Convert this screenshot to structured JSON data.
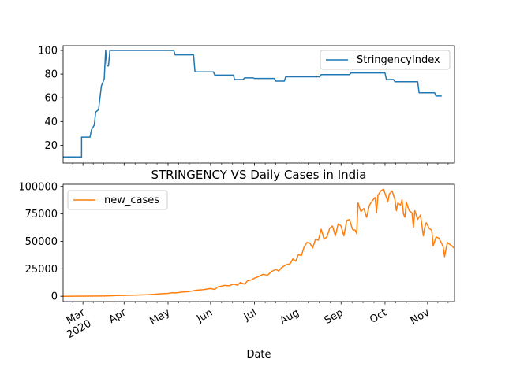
{
  "chart_data": [
    {
      "type": "line",
      "title": "",
      "xlabel": "",
      "ylabel": "",
      "ylim": [
        5,
        104
      ],
      "yticks": [
        20,
        40,
        60,
        80,
        100
      ],
      "legend": {
        "position": "top-right",
        "entries": [
          "StringencyIndex"
        ]
      },
      "series": [
        {
          "name": "StringencyIndex",
          "color": "#1f77b4",
          "points": [
            [
              "2020-02-01",
              10.2
            ],
            [
              "2020-02-14",
              10.2
            ],
            [
              "2020-02-14",
              26.85
            ],
            [
              "2020-02-20",
              26.85
            ],
            [
              "2020-02-21",
              33
            ],
            [
              "2020-02-23",
              37
            ],
            [
              "2020-02-24",
              48
            ],
            [
              "2020-02-26",
              50
            ],
            [
              "2020-02-27",
              60
            ],
            [
              "2020-02-28",
              70
            ],
            [
              "2020-03-01",
              76
            ],
            [
              "2020-03-02",
              100
            ],
            [
              "2020-03-03",
              87
            ],
            [
              "2020-03-04",
              87
            ],
            [
              "2020-03-05",
              100
            ],
            [
              "2020-03-23",
              100
            ],
            [
              "2020-04-01",
              100
            ],
            [
              "2020-04-19",
              100
            ],
            [
              "2020-04-20",
              96.3
            ],
            [
              "2020-05-03",
              96.3
            ],
            [
              "2020-05-04",
              81.94
            ],
            [
              "2020-05-17",
              81.94
            ],
            [
              "2020-05-18",
              79.17
            ],
            [
              "2020-05-31",
              79.17
            ],
            [
              "2020-06-01",
              75.46
            ],
            [
              "2020-06-07",
              75.46
            ],
            [
              "2020-06-08",
              76.85
            ],
            [
              "2020-06-14",
              76.85
            ],
            [
              "2020-06-15",
              76.39
            ],
            [
              "2020-06-29",
              76.39
            ],
            [
              "2020-06-30",
              74.07
            ],
            [
              "2020-07-06",
              74.07
            ],
            [
              "2020-07-07",
              77.78
            ],
            [
              "2020-07-31",
              77.78
            ],
            [
              "2020-08-01",
              79.63
            ],
            [
              "2020-08-21",
              79.63
            ],
            [
              "2020-08-22",
              81.02
            ],
            [
              "2020-09-15",
              81.02
            ],
            [
              "2020-09-16",
              75.46
            ],
            [
              "2020-09-21",
              75.46
            ],
            [
              "2020-09-22",
              73.61
            ],
            [
              "2020-10-08",
              73.61
            ],
            [
              "2020-10-09",
              64.35
            ],
            [
              "2020-10-20",
              64.35
            ],
            [
              "2020-10-21",
              61.57
            ],
            [
              "2020-10-25",
              61.57
            ]
          ]
        }
      ]
    },
    {
      "type": "line",
      "title": "STRINGENCY VS Daily Cases in India",
      "xlabel": "Date",
      "ylabel": "",
      "ylim": [
        -4900,
        102000
      ],
      "yticks": [
        0,
        25000,
        50000,
        75000,
        100000
      ],
      "ytick_labels": [
        "0",
        "25000",
        "50000",
        "75000",
        "100000"
      ],
      "xticks": [
        {
          "date": "2020-02-15",
          "label": "Mar",
          "sublabel": "2020"
        },
        {
          "date": "2020-03-15",
          "label": "Apr",
          "sublabel": ""
        },
        {
          "date": "2020-04-15",
          "label": "May",
          "sublabel": ""
        },
        {
          "date": "2020-05-15",
          "label": "Jun",
          "sublabel": ""
        },
        {
          "date": "2020-06-15",
          "label": "Jul",
          "sublabel": ""
        },
        {
          "date": "2020-07-15",
          "label": "Aug",
          "sublabel": ""
        },
        {
          "date": "2020-08-15",
          "label": "Sep",
          "sublabel": ""
        },
        {
          "date": "2020-09-15",
          "label": "Oct",
          "sublabel": ""
        },
        {
          "date": "2020-10-15",
          "label": "Nov",
          "sublabel": ""
        }
      ],
      "minor_ticks_per_major": 3,
      "legend": {
        "position": "top-left",
        "entries": [
          "new_cases"
        ]
      },
      "series": [
        {
          "name": "new_cases",
          "color": "#ff7f0e",
          "points": [
            [
              "2020-02-01",
              0
            ],
            [
              "2020-03-01",
              200
            ],
            [
              "2020-03-10",
              600
            ],
            [
              "2020-03-20",
              900
            ],
            [
              "2020-03-31",
              1400
            ],
            [
              "2020-04-05",
              1700
            ],
            [
              "2020-04-10",
              2300
            ],
            [
              "2020-04-15",
              2600
            ],
            [
              "2020-04-18",
              3300
            ],
            [
              "2020-04-20",
              3000
            ],
            [
              "2020-04-25",
              3800
            ],
            [
              "2020-04-30",
              4300
            ],
            [
              "2020-05-05",
              5500
            ],
            [
              "2020-05-10",
              6000
            ],
            [
              "2020-05-15",
              7000
            ],
            [
              "2020-05-18",
              6200
            ],
            [
              "2020-05-20",
              8500
            ],
            [
              "2020-05-25",
              9900
            ],
            [
              "2020-05-28",
              9500
            ],
            [
              "2020-05-31",
              11000
            ],
            [
              "2020-06-03",
              10000
            ],
            [
              "2020-06-05",
              12500
            ],
            [
              "2020-06-08",
              11000
            ],
            [
              "2020-06-10",
              14000
            ],
            [
              "2020-06-13",
              15000
            ],
            [
              "2020-06-15",
              16500
            ],
            [
              "2020-06-18",
              18000
            ],
            [
              "2020-06-21",
              20000
            ],
            [
              "2020-06-24",
              19000
            ],
            [
              "2020-06-27",
              22500
            ],
            [
              "2020-06-30",
              24500
            ],
            [
              "2020-07-02",
              23000
            ],
            [
              "2020-07-04",
              26000
            ],
            [
              "2020-07-07",
              28500
            ],
            [
              "2020-07-10",
              29500
            ],
            [
              "2020-07-12",
              34000
            ],
            [
              "2020-07-14",
              32000
            ],
            [
              "2020-07-16",
              38000
            ],
            [
              "2020-07-18",
              37000
            ],
            [
              "2020-07-20",
              45000
            ],
            [
              "2020-07-22",
              49000
            ],
            [
              "2020-07-24",
              48500
            ],
            [
              "2020-07-26",
              44000
            ],
            [
              "2020-07-28",
              52000
            ],
            [
              "2020-07-30",
              51000
            ],
            [
              "2020-08-01",
              61000
            ],
            [
              "2020-08-03",
              52000
            ],
            [
              "2020-08-05",
              54000
            ],
            [
              "2020-08-07",
              62000
            ],
            [
              "2020-08-09",
              64000
            ],
            [
              "2020-08-11",
              55000
            ],
            [
              "2020-08-13",
              66000
            ],
            [
              "2020-08-15",
              64000
            ],
            [
              "2020-08-17",
              55000
            ],
            [
              "2020-08-19",
              69000
            ],
            [
              "2020-08-21",
              70000
            ],
            [
              "2020-08-23",
              61000
            ],
            [
              "2020-08-25",
              60000
            ],
            [
              "2020-08-26",
              57000
            ],
            [
              "2020-08-27",
              85000
            ],
            [
              "2020-08-29",
              77000
            ],
            [
              "2020-08-31",
              80000
            ],
            [
              "2020-09-02",
              72000
            ],
            [
              "2020-09-04",
              83000
            ],
            [
              "2020-09-06",
              87000
            ],
            [
              "2020-09-08",
              90000
            ],
            [
              "2020-09-09",
              76000
            ],
            [
              "2020-09-10",
              92000
            ],
            [
              "2020-09-12",
              96000
            ],
            [
              "2020-09-14",
              97500
            ],
            [
              "2020-09-16",
              90000
            ],
            [
              "2020-09-17",
              86000
            ],
            [
              "2020-09-18",
              93000
            ],
            [
              "2020-09-20",
              96000
            ],
            [
              "2020-09-22",
              88000
            ],
            [
              "2020-09-23",
              78000
            ],
            [
              "2020-09-24",
              85000
            ],
            [
              "2020-09-26",
              83000
            ],
            [
              "2020-09-27",
              88000
            ],
            [
              "2020-09-28",
              75000
            ],
            [
              "2020-09-29",
              72000
            ],
            [
              "2020-09-30",
              86000
            ],
            [
              "2020-10-02",
              78000
            ],
            [
              "2020-10-04",
              76000
            ],
            [
              "2020-10-05",
              63000
            ],
            [
              "2020-10-06",
              78000
            ],
            [
              "2020-10-08",
              70000
            ],
            [
              "2020-10-10",
              74000
            ],
            [
              "2020-10-12",
              55000
            ],
            [
              "2020-10-13",
              63000
            ],
            [
              "2020-10-14",
              67000
            ],
            [
              "2020-10-16",
              62000
            ],
            [
              "2020-10-18",
              60000
            ],
            [
              "2020-10-19",
              46000
            ],
            [
              "2020-10-21",
              54000
            ],
            [
              "2020-10-23",
              53000
            ],
            [
              "2020-10-25",
              48000
            ],
            [
              "2020-10-26",
              45000
            ],
            [
              "2020-10-27",
              36000
            ],
            [
              "2020-10-28",
              43000
            ],
            [
              "2020-10-29",
              49000
            ],
            [
              "2020-11-01",
              46000
            ],
            [
              "2020-11-03",
              43500
            ]
          ]
        }
      ]
    }
  ],
  "axis_domain": [
    "2020-02-01",
    "2020-11-03"
  ]
}
